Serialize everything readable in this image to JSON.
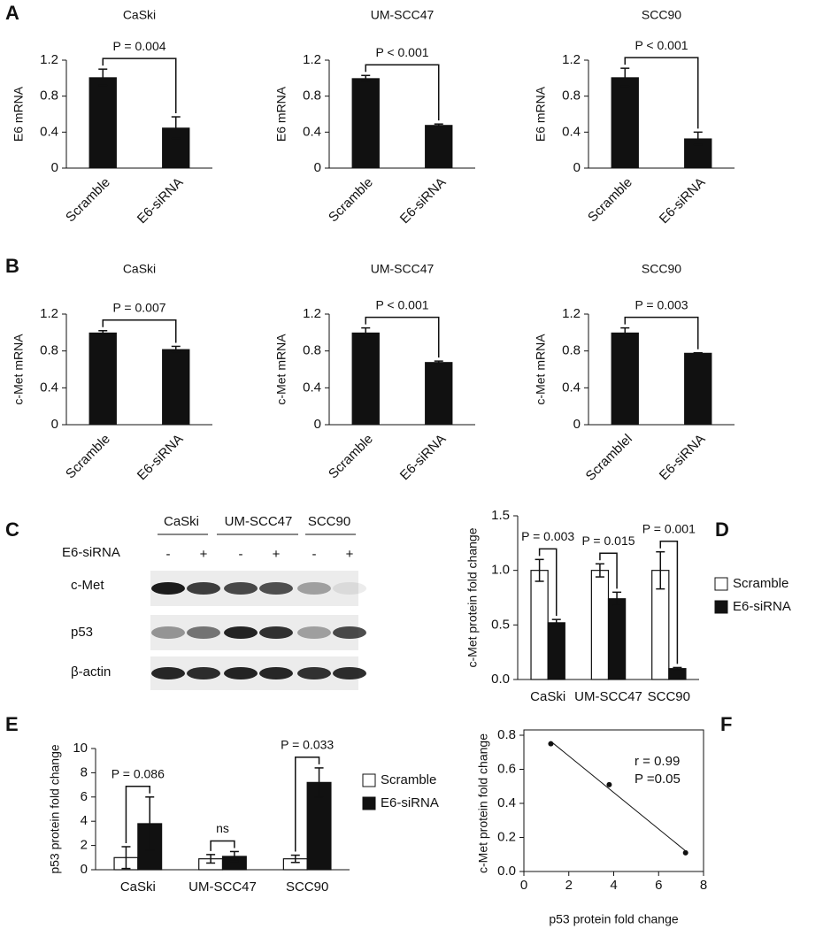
{
  "panels": [
    "A",
    "B",
    "C",
    "D",
    "E",
    "F"
  ],
  "chart_data": [
    {
      "type": "bar",
      "title": "CaSki",
      "y_label": "E6 mRNA",
      "categories": [
        "Scramble",
        "E6-siRNA"
      ],
      "values": [
        1.01,
        0.45
      ],
      "errors": [
        0.09,
        0.12
      ],
      "color": "#111111",
      "ylim": [
        0,
        1.2
      ],
      "yticks": [
        0,
        0.4,
        0.8,
        1.2
      ],
      "annotation": "P = 0.004"
    },
    {
      "type": "bar",
      "title": "UM-SCC47",
      "y_label": "E6 mRNA",
      "categories": [
        "Scramble",
        "E6-siRNA"
      ],
      "values": [
        1.0,
        0.48
      ],
      "errors": [
        0.03,
        0.01
      ],
      "color": "#111111",
      "ylim": [
        0,
        1.2
      ],
      "yticks": [
        0,
        0.4,
        0.8,
        1.2
      ],
      "annotation": "P < 0.001"
    },
    {
      "type": "bar",
      "title": "SCC90",
      "y_label": "E6 mRNA",
      "categories": [
        "Scramble",
        "E6-siRNA"
      ],
      "values": [
        1.01,
        0.33
      ],
      "errors": [
        0.1,
        0.07
      ],
      "color": "#111111",
      "ylim": [
        0,
        1.2
      ],
      "yticks": [
        0,
        0.4,
        0.8,
        1.2
      ],
      "annotation": "P < 0.001"
    },
    {
      "type": "bar",
      "title": "CaSki",
      "y_label": "c-Met mRNA",
      "categories": [
        "Scramble",
        "E6-siRNA"
      ],
      "values": [
        1.0,
        0.82
      ],
      "errors": [
        0.02,
        0.03
      ],
      "color": "#111111",
      "ylim": [
        0,
        1.2
      ],
      "yticks": [
        0,
        0.4,
        0.8,
        1.2
      ],
      "annotation": "P = 0.007"
    },
    {
      "type": "bar",
      "title": "UM-SCC47",
      "y_label": "c-Met mRNA",
      "categories": [
        "Scramble",
        "E6-siRNA"
      ],
      "values": [
        1.0,
        0.68
      ],
      "errors": [
        0.05,
        0.01
      ],
      "color": "#111111",
      "ylim": [
        0,
        1.2
      ],
      "yticks": [
        0,
        0.4,
        0.8,
        1.2
      ],
      "annotation": "P < 0.001"
    },
    {
      "type": "bar",
      "title": "SCC90",
      "y_label": "c-Met mRNA",
      "categories": [
        "Scramblel",
        "E6-siRNA"
      ],
      "values": [
        1.0,
        0.78
      ],
      "errors": [
        0.05,
        0.0
      ],
      "color": "#111111",
      "ylim": [
        0,
        1.2
      ],
      "yticks": [
        0,
        0.4,
        0.8,
        1.2
      ],
      "annotation": "P = 0.003"
    },
    {
      "type": "bar",
      "y_label": "c-Met protein fold change",
      "categories": [
        "CaSki",
        "UM-SCC47",
        "SCC90"
      ],
      "series": [
        {
          "name": "Scramble",
          "color": "#ffffff",
          "values": [
            1.0,
            1.0,
            1.0
          ],
          "errors": [
            0.1,
            0.06,
            0.17
          ]
        },
        {
          "name": "E6-siRNA",
          "color": "#111111",
          "values": [
            0.52,
            0.74,
            0.1
          ],
          "errors": [
            0.03,
            0.06,
            0.01
          ]
        }
      ],
      "ylim": [
        0,
        1.5
      ],
      "yticks": [
        {
          "value": 0,
          "label": "0.0"
        },
        0.5,
        {
          "value": 1,
          "label": "1.0"
        },
        1.5
      ],
      "annotations": [
        "P = 0.003",
        "P = 0.015",
        "P = 0.001"
      ],
      "legend": "right"
    },
    {
      "type": "bar",
      "y_label": "p53 protein fold change",
      "categories": [
        "CaSki",
        "UM-SCC47",
        "SCC90"
      ],
      "series": [
        {
          "name": "Scramble",
          "color": "#ffffff",
          "values": [
            1.0,
            0.9,
            0.9
          ],
          "errors": [
            0.9,
            0.35,
            0.3
          ]
        },
        {
          "name": "E6-siRNA",
          "color": "#111111",
          "values": [
            3.8,
            1.1,
            7.2
          ],
          "errors": [
            2.2,
            0.4,
            1.2
          ]
        }
      ],
      "ylim": [
        0,
        10
      ],
      "yticks": [
        0,
        2,
        4,
        6,
        8,
        10
      ],
      "annotations": [
        "P = 0.086",
        "ns",
        "P = 0.033"
      ],
      "legend": "right"
    },
    {
      "type": "scatter",
      "x_label": "p53 protein fold change",
      "y_label": "c-Met protein fold change",
      "x": [
        1.2,
        3.8,
        7.2
      ],
      "y": [
        0.75,
        0.51,
        0.11
      ],
      "color": "#111111",
      "xlim": [
        0,
        8
      ],
      "xticks": [
        0,
        2,
        4,
        6,
        8
      ],
      "ylim": [
        0,
        0.8
      ],
      "yticks": [
        {
          "value": 0,
          "label": "0.0"
        },
        0.2,
        0.4,
        0.6,
        0.8
      ],
      "trendline": true,
      "annotations": [
        "r = 0.99",
        "P =0.05"
      ]
    }
  ],
  "blot": {
    "cell_lines": [
      "CaSki",
      "UM-SCC47",
      "SCC90"
    ],
    "treatment": "E6-siRNA",
    "lanes": [
      "-",
      "+",
      "-",
      "+",
      "-",
      "+"
    ],
    "rows": [
      "c-Met",
      "p53",
      "β-actin"
    ]
  }
}
